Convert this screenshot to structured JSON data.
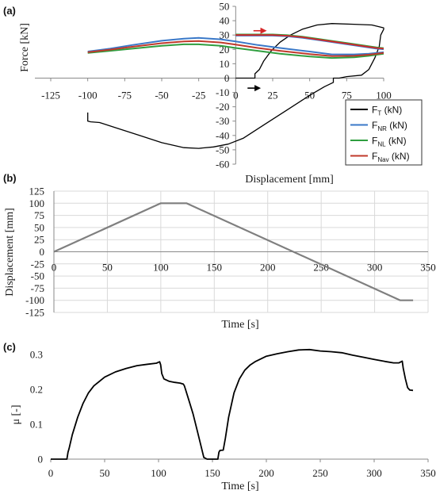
{
  "chart_data": [
    {
      "panel_label": "(a)",
      "type": "line",
      "xlabel": "Displacement [mm]",
      "ylabel": "Force [kN]",
      "xlim": [
        -125,
        100
      ],
      "ylim": [
        -60,
        50
      ],
      "xticks": [
        -125,
        -100,
        -75,
        -50,
        -25,
        0,
        25,
        50,
        75,
        100
      ],
      "yticks": [
        -60,
        -50,
        -40,
        -30,
        -20,
        -10,
        0,
        10,
        20,
        30,
        40,
        50
      ],
      "grid": false,
      "legend": "bottom-right",
      "series": [
        {
          "name": "F_T (kN)",
          "legend_main": "F",
          "legend_sub": "T",
          "legend_unit": " (kN)",
          "color": "#000000",
          "points": [
            [
              0,
              0
            ],
            [
              12,
              0
            ],
            [
              13,
              0
            ],
            [
              13,
              3
            ],
            [
              16,
              6
            ],
            [
              19,
              12
            ],
            [
              24,
              19
            ],
            [
              30,
              25
            ],
            [
              37,
              30
            ],
            [
              45,
              34
            ],
            [
              55,
              37
            ],
            [
              65,
              38
            ],
            [
              80,
              37.5
            ],
            [
              92,
              37
            ],
            [
              100,
              35
            ],
            [
              100,
              34
            ],
            [
              98,
              30
            ],
            [
              97,
              22
            ],
            [
              94,
              14
            ],
            [
              90,
              6
            ],
            [
              85,
              2
            ],
            [
              75,
              1
            ],
            [
              70,
              0
            ],
            [
              66,
              0
            ],
            [
              66,
              -3
            ],
            [
              60,
              -6
            ],
            [
              50,
              -12
            ],
            [
              35,
              -22
            ],
            [
              20,
              -32
            ],
            [
              5,
              -42
            ],
            [
              -5,
              -46
            ],
            [
              -15,
              -48
            ],
            [
              -25,
              -49
            ],
            [
              -35,
              -48.5
            ],
            [
              -50,
              -45
            ],
            [
              -65,
              -40
            ],
            [
              -80,
              -35
            ],
            [
              -92,
              -31
            ],
            [
              -98,
              -30.5
            ],
            [
              -100,
              -30
            ],
            [
              -100,
              -24
            ]
          ]
        },
        {
          "name": "F_NR (kN)",
          "legend_main": "F",
          "legend_sub": "NR",
          "legend_unit": " (kN)",
          "color": "#3a78c8",
          "points": [
            [
              -100,
              18.5
            ],
            [
              -85,
              20.5
            ],
            [
              -70,
              23
            ],
            [
              -50,
              26
            ],
            [
              -35,
              27.5
            ],
            [
              -25,
              28
            ],
            [
              -10,
              27
            ],
            [
              0,
              25.5
            ],
            [
              15,
              23
            ],
            [
              30,
              21
            ],
            [
              50,
              18.5
            ],
            [
              65,
              16.5
            ],
            [
              80,
              16.5
            ],
            [
              90,
              17
            ],
            [
              100,
              18
            ]
          ]
        },
        {
          "name": "F_NL (kN)",
          "legend_main": "F",
          "legend_sub": "NL",
          "legend_unit": " (kN)",
          "color": "#2f9e3f",
          "points": [
            [
              -100,
              17.5
            ],
            [
              -85,
              19
            ],
            [
              -70,
              20.5
            ],
            [
              -50,
              22.5
            ],
            [
              -35,
              23.5
            ],
            [
              -25,
              23.5
            ],
            [
              -10,
              22.5
            ],
            [
              0,
              21
            ],
            [
              15,
              19
            ],
            [
              30,
              17
            ],
            [
              50,
              15
            ],
            [
              65,
              14
            ],
            [
              80,
              14.5
            ],
            [
              90,
              15.5
            ],
            [
              100,
              17
            ]
          ]
        },
        {
          "name": "F_Nav (kN)",
          "legend_main": "F",
          "legend_sub": "Nav",
          "legend_unit": " (kN)",
          "color": "#c0392b",
          "points": [
            [
              -100,
              18
            ],
            [
              -85,
              19.8
            ],
            [
              -70,
              21.8
            ],
            [
              -50,
              24.3
            ],
            [
              -35,
              25.5
            ],
            [
              -25,
              25.8
            ],
            [
              -10,
              24.8
            ],
            [
              0,
              23.3
            ],
            [
              15,
              21
            ],
            [
              30,
              19
            ],
            [
              50,
              16.7
            ],
            [
              65,
              15.3
            ],
            [
              80,
              15.5
            ],
            [
              90,
              16.3
            ],
            [
              100,
              17.5
            ]
          ]
        }
      ],
      "upper_branch": [
        [
          0,
          30
        ],
        [
          10,
          30
        ],
        [
          25,
          30
        ],
        [
          35,
          29.5
        ],
        [
          45,
          28.5
        ],
        [
          55,
          27
        ],
        [
          65,
          25.5
        ],
        [
          75,
          24
        ],
        [
          85,
          22.5
        ],
        [
          95,
          21
        ],
        [
          100,
          20.5
        ]
      ],
      "annotations": [
        {
          "type": "arrow",
          "color": "#d62728",
          "from": [
            12,
            33
          ],
          "to": [
            21,
            33
          ]
        },
        {
          "type": "arrow",
          "color": "#000000",
          "from": [
            8,
            -7
          ],
          "to": [
            17,
            -7
          ]
        }
      ]
    },
    {
      "panel_label": "(b)",
      "type": "line",
      "xlabel": "Time [s]",
      "ylabel": "Displacement [mm]",
      "xlim": [
        0,
        350
      ],
      "ylim": [
        -125,
        125
      ],
      "xticks": [
        0,
        50,
        100,
        150,
        200,
        250,
        300,
        350
      ],
      "yticks": [
        -125,
        -100,
        -75,
        -50,
        -25,
        0,
        25,
        50,
        75,
        100,
        125
      ],
      "grid": true,
      "series": [
        {
          "color": "#7f7f7f",
          "points": [
            [
              0,
              0
            ],
            [
              100,
              100
            ],
            [
              124,
              100
            ],
            [
              324,
              -100
            ],
            [
              336,
              -100
            ]
          ]
        }
      ]
    },
    {
      "panel_label": "(c)",
      "type": "line",
      "xlabel": "Time [s]",
      "ylabel": "μ [-]",
      "xlim": [
        0,
        350
      ],
      "ylim": [
        0,
        0.35
      ],
      "xticks": [
        0,
        50,
        100,
        150,
        200,
        250,
        300,
        350
      ],
      "yticks": [
        0,
        0.1,
        0.2,
        0.3
      ],
      "grid": false,
      "series": [
        {
          "color": "#000000",
          "points": [
            [
              0,
              0
            ],
            [
              15,
              0
            ],
            [
              16,
              0.02
            ],
            [
              17,
              0.03
            ],
            [
              20,
              0.07
            ],
            [
              25,
              0.12
            ],
            [
              30,
              0.16
            ],
            [
              35,
              0.19
            ],
            [
              40,
              0.21
            ],
            [
              50,
              0.235
            ],
            [
              60,
              0.25
            ],
            [
              70,
              0.26
            ],
            [
              80,
              0.268
            ],
            [
              90,
              0.272
            ],
            [
              98,
              0.275
            ],
            [
              101,
              0.279
            ],
            [
              102,
              0.27
            ],
            [
              103,
              0.245
            ],
            [
              105,
              0.23
            ],
            [
              110,
              0.223
            ],
            [
              115,
              0.22
            ],
            [
              120,
              0.218
            ],
            [
              123,
              0.215
            ],
            [
              124,
              0.21
            ],
            [
              125,
              0.2
            ],
            [
              128,
              0.17
            ],
            [
              132,
              0.13
            ],
            [
              136,
              0.08
            ],
            [
              140,
              0.03
            ],
            [
              142,
              0.005
            ],
            [
              145,
              0
            ],
            [
              150,
              0
            ],
            [
              152,
              0
            ],
            [
              155,
              0
            ],
            [
              156,
              0.02
            ],
            [
              157,
              0.025
            ],
            [
              160,
              0.026
            ],
            [
              162,
              0.06
            ],
            [
              165,
              0.12
            ],
            [
              170,
              0.19
            ],
            [
              175,
              0.23
            ],
            [
              180,
              0.255
            ],
            [
              185,
              0.27
            ],
            [
              190,
              0.28
            ],
            [
              200,
              0.295
            ],
            [
              210,
              0.302
            ],
            [
              220,
              0.308
            ],
            [
              230,
              0.313
            ],
            [
              240,
              0.314
            ],
            [
              250,
              0.31
            ],
            [
              260,
              0.308
            ],
            [
              270,
              0.305
            ],
            [
              280,
              0.298
            ],
            [
              290,
              0.292
            ],
            [
              300,
              0.286
            ],
            [
              310,
              0.28
            ],
            [
              318,
              0.276
            ],
            [
              323,
              0.276
            ],
            [
              326,
              0.281
            ],
            [
              327,
              0.26
            ],
            [
              329,
              0.23
            ],
            [
              331,
              0.205
            ],
            [
              333,
              0.198
            ],
            [
              336,
              0.197
            ]
          ]
        }
      ]
    }
  ]
}
